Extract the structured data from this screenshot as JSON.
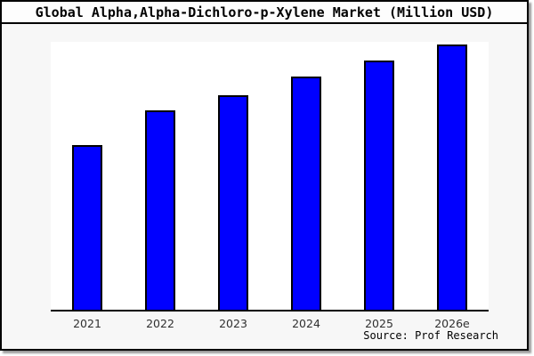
{
  "chart_data": {
    "type": "bar",
    "title": "Global Alpha,Alpha-Dichloro-p-Xylene Market (Million USD)",
    "categories": [
      "2021",
      "2022",
      "2023",
      "2024",
      "2025",
      "2026e"
    ],
    "values": [
      0.62,
      0.75,
      0.81,
      0.88,
      0.94,
      1.0
    ],
    "values_unit": "relative (y axis unlabeled in image; heights normalized to 2026e = 1.0)",
    "ylim": [
      0,
      1.01
    ],
    "xlabel": "",
    "ylabel": "",
    "grid": false,
    "legend_position": "none",
    "y_axis_tick_labels_visible": false,
    "bar_color": "#0000ff",
    "bar_edge_color": "#000000",
    "background_color": "#f7f7f7",
    "plot_background_color": "#ffffff",
    "source_note": "Source: Prof Research"
  }
}
